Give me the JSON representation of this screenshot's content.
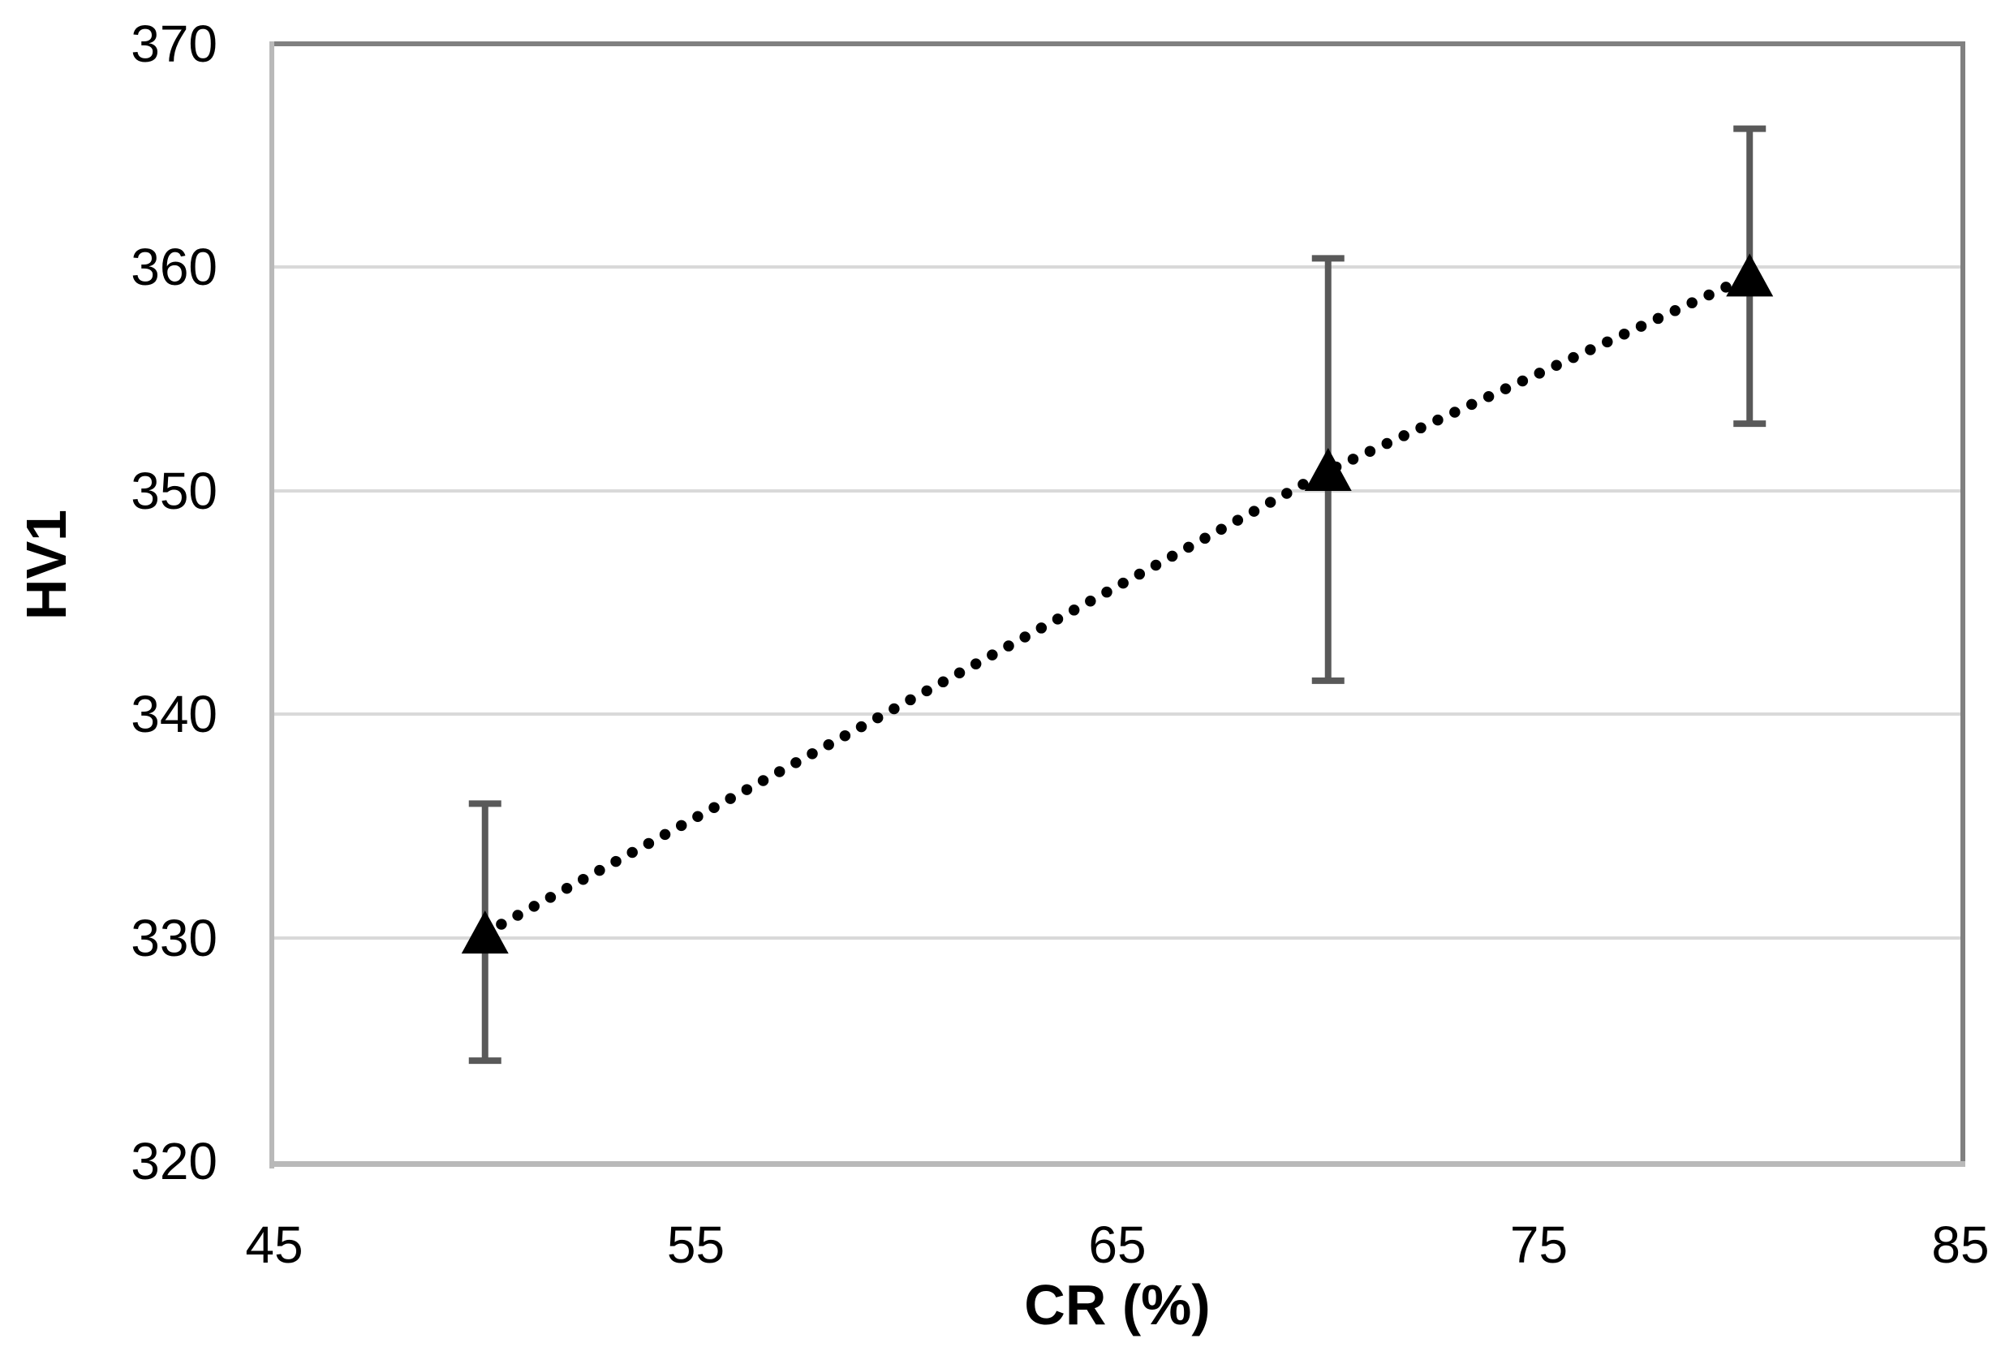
{
  "chart_data": {
    "type": "scatter",
    "title": "",
    "xlabel": "CR (%)",
    "ylabel": "HV1",
    "xlim": [
      45,
      85
    ],
    "ylim": [
      320,
      370
    ],
    "x_ticks": [
      45,
      55,
      65,
      75,
      85
    ],
    "y_ticks": [
      320,
      330,
      340,
      350,
      360,
      370
    ],
    "grid": "horizontal",
    "legend": "none",
    "series": [
      {
        "name": "HV1",
        "marker": "filled-triangle-up",
        "line_style": "dotted",
        "points": [
          {
            "x": 50,
            "y": 330.2,
            "error_plus": 5.8,
            "error_minus": 5.7
          },
          {
            "x": 70,
            "y": 350.9,
            "error_plus": 9.5,
            "error_minus": 9.4
          },
          {
            "x": 80,
            "y": 359.6,
            "error_plus": 6.6,
            "error_minus": 6.6
          }
        ]
      }
    ],
    "style": {
      "marker_color": "#000000",
      "trend_line_color": "#000000",
      "error_bar_color": "#595959",
      "gridline_color": "#d9d9d9",
      "border_dark_color": "#808080",
      "border_light_color": "#b9b9b9",
      "text_color": "#000000"
    }
  }
}
